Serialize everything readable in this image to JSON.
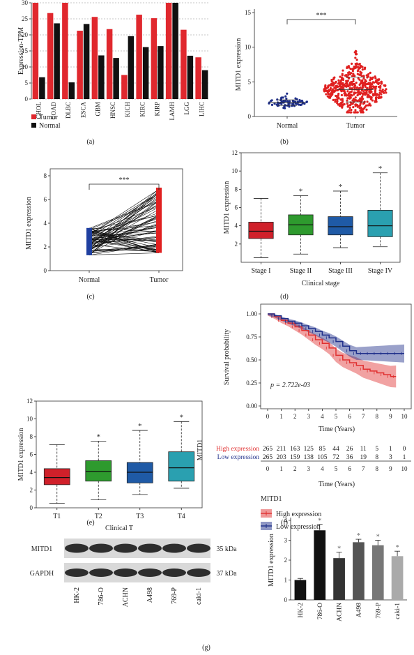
{
  "panels": [
    {
      "id": "a",
      "label": "(a)"
    },
    {
      "id": "b",
      "label": "(b)"
    },
    {
      "id": "c",
      "label": "(c)"
    },
    {
      "id": "d",
      "label": "(d)"
    },
    {
      "id": "e",
      "label": "(e)"
    },
    {
      "id": "f",
      "label": "(f)"
    },
    {
      "id": "g",
      "label": "(g)"
    }
  ],
  "chart_data": [
    {
      "id": "a",
      "type": "bar",
      "ylabel": "Expression-TPM",
      "ylim": [
        0,
        30
      ],
      "yticks": [
        0,
        5,
        10,
        15,
        20,
        25,
        30
      ],
      "categories": [
        "CHOL",
        "COAD",
        "DLBC",
        "ESCA",
        "GBM",
        "HNSC",
        "KICH",
        "KIRC",
        "KIRP",
        "LAMH",
        "LGG",
        "LIHC"
      ],
      "series": [
        {
          "name": "Tumor",
          "color": "#e0282e",
          "values": [
            30.5,
            26.8,
            31,
            21.3,
            25.6,
            21.8,
            7.5,
            26.3,
            25.2,
            31,
            21.6,
            13
          ]
        },
        {
          "name": "Normal",
          "color": "#111111",
          "values": [
            6.8,
            23.6,
            5.2,
            23.4,
            13.6,
            12.8,
            19.6,
            16.2,
            16.5,
            31,
            13.5,
            9
          ]
        }
      ],
      "legend_position": "bottom-left"
    },
    {
      "id": "b",
      "type": "scatter",
      "ylabel": "MITD1 expression",
      "ylim": [
        0,
        15
      ],
      "yticks": [
        0,
        5,
        10,
        15
      ],
      "categories": [
        "Normal",
        "Tumor"
      ],
      "groups": [
        {
          "name": "Normal",
          "color": "#1f2f8a",
          "mean": 2.0,
          "sd": 0.4,
          "min": 1.2,
          "max": 3.3,
          "n": 72
        },
        {
          "name": "Tumor",
          "color": "#e02020",
          "mean": 3.9,
          "sd": 1.8,
          "min": 0.6,
          "max": 11.0,
          "n": 530
        }
      ],
      "significance": "***"
    },
    {
      "id": "c",
      "type": "line",
      "ylabel": "MITD1 expression",
      "ylim": [
        0,
        8
      ],
      "yticks": [
        0,
        2,
        4,
        6,
        8
      ],
      "categories": [
        "Normal",
        "Tumor"
      ],
      "pairs": 72,
      "normal_range": [
        1.3,
        3.6
      ],
      "tumor_range": [
        1.5,
        7.0
      ],
      "significance": "***"
    },
    {
      "id": "d",
      "type": "box",
      "xlabel": "Clinical stage",
      "ylabel": "MITD1 expression",
      "ylim": [
        0,
        12
      ],
      "yticks": [
        2,
        4,
        6,
        8,
        10,
        12
      ],
      "categories": [
        "Stage I",
        "Stage II",
        "Stage III",
        "Stage IV"
      ],
      "colors": [
        "#d0202a",
        "#2e9a2e",
        "#1f5aa6",
        "#2aa0b0"
      ],
      "boxes": [
        {
          "min": 0.5,
          "q1": 2.6,
          "median": 3.4,
          "q3": 4.4,
          "max": 7.0,
          "star": ""
        },
        {
          "min": 0.9,
          "q1": 3.0,
          "median": 4.1,
          "q3": 5.2,
          "max": 7.3,
          "star": "*"
        },
        {
          "min": 1.6,
          "q1": 3.0,
          "median": 3.9,
          "q3": 5.0,
          "max": 7.8,
          "star": "*"
        },
        {
          "min": 1.7,
          "q1": 2.8,
          "median": 4.0,
          "q3": 5.7,
          "max": 9.8,
          "star": "*"
        }
      ]
    },
    {
      "id": "e",
      "type": "box",
      "xlabel": "Clinical T",
      "ylabel": "MITD1 expression",
      "ylim": [
        0,
        12
      ],
      "yticks": [
        0,
        2,
        4,
        6,
        8,
        10,
        12
      ],
      "categories": [
        "T1",
        "T2",
        "T3",
        "T4"
      ],
      "colors": [
        "#d0202a",
        "#2e9a2e",
        "#1f5aa6",
        "#2aa0b0"
      ],
      "boxes": [
        {
          "min": 0.5,
          "q1": 2.6,
          "median": 3.4,
          "q3": 4.4,
          "max": 7.1,
          "star": ""
        },
        {
          "min": 0.9,
          "q1": 3.0,
          "median": 4.1,
          "q3": 5.3,
          "max": 7.5,
          "star": "*"
        },
        {
          "min": 1.5,
          "q1": 2.8,
          "median": 4.0,
          "q3": 5.1,
          "max": 8.7,
          "star": "*"
        },
        {
          "min": 2.2,
          "q1": 3.0,
          "median": 4.5,
          "q3": 6.3,
          "max": 9.7,
          "star": "*"
        }
      ]
    },
    {
      "id": "f",
      "type": "line",
      "xlabel": "Time (Years)",
      "ylabel": "Survival probability",
      "xlim": [
        0,
        10
      ],
      "ylim": [
        0,
        1
      ],
      "xticks": [
        0,
        1,
        2,
        3,
        4,
        5,
        6,
        7,
        8,
        9,
        10
      ],
      "yticks": [
        "0.00",
        "0.25",
        "0.50",
        "0.75",
        "1.00"
      ],
      "pvalue_label": "p = 2.722e-03",
      "series": [
        {
          "name": "High expression",
          "color": "#e03030",
          "x": [
            0,
            0.5,
            1,
            1.5,
            2,
            2.5,
            3,
            3.5,
            4,
            4.5,
            5,
            5.5,
            6,
            6.5,
            7,
            7.5,
            8,
            8.5,
            9,
            9.4
          ],
          "y": [
            1,
            0.97,
            0.93,
            0.9,
            0.86,
            0.82,
            0.77,
            0.72,
            0.68,
            0.63,
            0.55,
            0.5,
            0.47,
            0.44,
            0.4,
            0.38,
            0.36,
            0.34,
            0.32,
            0.32
          ]
        },
        {
          "name": "Low expression",
          "color": "#1f2f8a",
          "x": [
            0,
            0.5,
            1,
            1.5,
            2,
            2.5,
            3,
            3.5,
            4,
            4.5,
            5,
            5.5,
            6,
            6.5,
            7,
            7.5,
            8,
            8.5,
            9,
            9.5,
            10
          ],
          "y": [
            1,
            0.98,
            0.95,
            0.92,
            0.9,
            0.87,
            0.84,
            0.81,
            0.77,
            0.74,
            0.7,
            0.65,
            0.6,
            0.57,
            0.57,
            0.57,
            0.57,
            0.57,
            0.57,
            0.57,
            0.57
          ]
        }
      ],
      "risk_table": {
        "ylabel": "MITD1",
        "rows": [
          {
            "label": "High expression",
            "color": "#e03030",
            "values": [
              "265",
              "211",
              "163",
              "125",
              "85",
              "44",
              "26",
              "11",
              "5",
              "1",
              "0"
            ]
          },
          {
            "label": "Low expression",
            "color": "#1f2f8a",
            "values": [
              "265",
              "203",
              "159",
              "138",
              "105",
              "72",
              "36",
              "19",
              "8",
              "3",
              "1"
            ]
          }
        ]
      },
      "legend_title": "MITD1"
    },
    {
      "id": "g",
      "type": "bar",
      "ylabel": "MITD1 expression",
      "ylim": [
        0,
        4
      ],
      "yticks": [
        0,
        1,
        2,
        3,
        4
      ],
      "categories": [
        "HK-2",
        "786-O",
        "ACHN",
        "A498",
        "769-P",
        "caki-1"
      ],
      "values": [
        1.0,
        3.5,
        2.1,
        2.9,
        2.75,
        2.2
      ],
      "errors": [
        0.08,
        0.3,
        0.3,
        0.15,
        0.25,
        0.25
      ],
      "colors": [
        "#111111",
        "#111111",
        "#333333",
        "#555555",
        "#777777",
        "#aaaaaa"
      ],
      "stars": [
        "",
        "*",
        "*",
        "*",
        "*",
        "*"
      ]
    }
  ],
  "western_blot": {
    "rows": [
      {
        "label": "MITD1",
        "size": "35 kDa"
      },
      {
        "label": "GAPDH",
        "size": "37 kDa"
      }
    ],
    "lanes": [
      "HK-2",
      "786-O",
      "ACHN",
      "A498",
      "769-P",
      "caki-1"
    ]
  }
}
